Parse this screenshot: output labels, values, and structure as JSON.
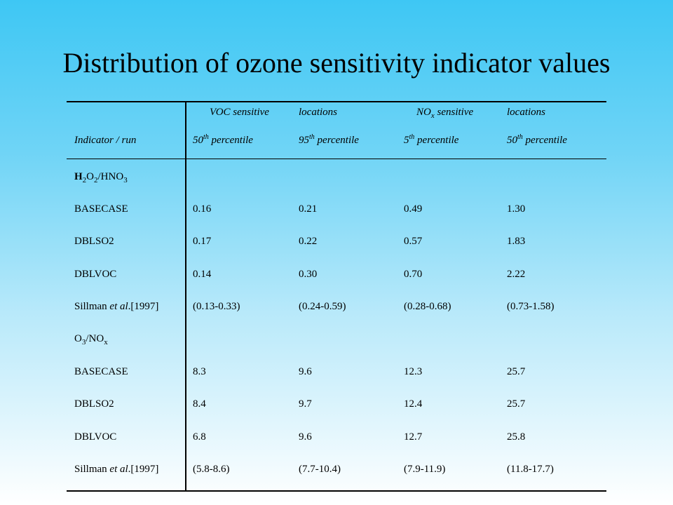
{
  "title": "Distribution of ozone sensitivity indicator values",
  "header": {
    "group1_a": "VOC sensitive",
    "group1_b": "locations",
    "group2_a_main": "NO",
    "group2_a_sub": "x",
    "group2_a_rest": "sensitive",
    "group2_b": "locations",
    "row_label": "Indicator / run",
    "col1": {
      "num": "50",
      "sup": "th",
      "rest": "percentile"
    },
    "col2": {
      "num": "95",
      "sup": "th",
      "rest": "percentile"
    },
    "col3": {
      "num": "5",
      "sup": "th",
      "rest": "percentile"
    },
    "col4": {
      "num": "50",
      "sup": "th",
      "rest": "percentile"
    }
  },
  "sections": [
    {
      "label": {
        "p1": "H",
        "s1": "2",
        "p2": "O",
        "s2": "2",
        "p3": "/HNO",
        "s3": "3"
      },
      "rows": [
        {
          "run": "BASECASE",
          "v": [
            "0.16",
            "0.21",
            "0.49",
            "1.30"
          ]
        },
        {
          "run": "DBLSO2",
          "v": [
            "0.17",
            "0.22",
            "0.57",
            "1.83"
          ]
        },
        {
          "run": "DBLVOC",
          "v": [
            "0.14",
            "0.30",
            "0.70",
            "2.22"
          ]
        },
        {
          "run_a": "Sillman ",
          "run_b": "et al",
          "run_c": ".[1997]",
          "v": [
            "(0.13-0.33)",
            "(0.24-0.59)",
            "(0.28-0.68)",
            "(0.73-1.58)"
          ]
        }
      ]
    },
    {
      "label": {
        "p1": "O",
        "s1": "3",
        "p2": "/NO",
        "s2": "x"
      },
      "rows": [
        {
          "run": "BASECASE",
          "v": [
            "8.3",
            "9.6",
            "12.3",
            "25.7"
          ]
        },
        {
          "run": "DBLSO2",
          "v": [
            "8.4",
            "9.7",
            "12.4",
            "25.7"
          ]
        },
        {
          "run": "DBLVOC",
          "v": [
            "6.8",
            "9.6",
            "12.7",
            "25.8"
          ]
        },
        {
          "run_a": "Sillman ",
          "run_b": "et al",
          "run_c": ".[1997]",
          "v": [
            "(5.8-8.6)",
            "(7.7-10.4)",
            "(7.9-11.9)",
            "(11.8-17.7)"
          ]
        }
      ]
    }
  ]
}
